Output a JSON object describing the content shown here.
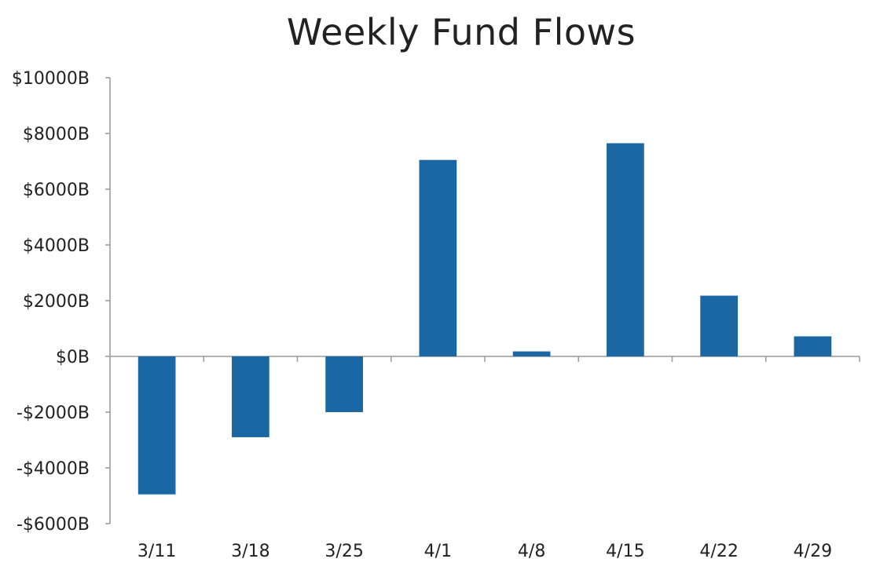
{
  "chart_data": {
    "type": "bar",
    "title": "Weekly Fund Flows",
    "xlabel": "",
    "ylabel": "",
    "categories": [
      "3/11",
      "3/18",
      "3/25",
      "4/1",
      "4/8",
      "4/15",
      "4/22",
      "4/29"
    ],
    "values": [
      -4950,
      -2900,
      -2000,
      7050,
      180,
      7650,
      2180,
      720
    ],
    "ylim": [
      -6000,
      10000
    ],
    "yticks": [
      10000,
      8000,
      6000,
      4000,
      2000,
      0,
      -2000,
      -4000,
      -6000
    ],
    "ytick_labels": [
      "$10000B",
      "$8000B",
      "$6000B",
      "$4000B",
      "$2000B",
      "$0B",
      "-$2000B",
      "-$4000B",
      "-$6000B"
    ],
    "grid": false,
    "legend": "none",
    "bar_color": "#1a67a3",
    "axis_color": "#999999"
  }
}
